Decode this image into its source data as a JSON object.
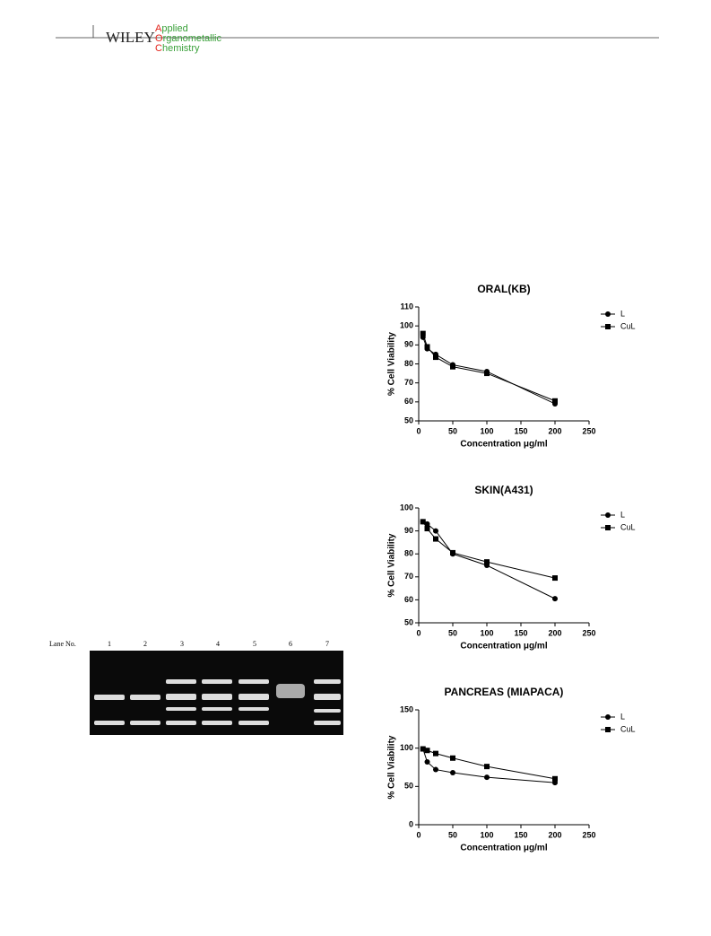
{
  "header": {
    "publisher": "WILEY",
    "journal": [
      "Applied",
      "Organometallic",
      "Chemistry"
    ]
  },
  "gel": {
    "lane_title": "Lane No.",
    "lanes": [
      "1",
      "2",
      "3",
      "4",
      "5",
      "6",
      "7"
    ]
  },
  "chart_data": [
    {
      "type": "line",
      "title": "ORAL(KB)",
      "x_label": "Concentration μg/ml",
      "y_label": "% Cell Viability",
      "x": [
        6.25,
        12.5,
        25,
        50,
        100,
        200
      ],
      "series": [
        {
          "name": "L",
          "color": "#000000",
          "marker": "circle",
          "values": [
            94,
            88,
            85,
            79.5,
            76,
            59
          ]
        },
        {
          "name": "CuL",
          "color": "#000000",
          "marker": "square",
          "values": [
            96,
            89,
            83.5,
            78.5,
            75,
            60.5
          ]
        }
      ],
      "xlim": [
        0,
        250
      ],
      "xticks": [
        0,
        50,
        100,
        150,
        200,
        250
      ],
      "ylim": [
        50,
        110
      ],
      "yticks": [
        50,
        60,
        70,
        80,
        90,
        100,
        110
      ],
      "legend": "right"
    },
    {
      "type": "line",
      "title": "SKIN(A431)",
      "x_label": "Concentration μg/ml",
      "y_label": "% Cell Viability",
      "x": [
        6.25,
        12.5,
        25,
        50,
        100,
        200
      ],
      "series": [
        {
          "name": "L",
          "color": "#000000",
          "marker": "circle",
          "values": [
            94,
            93,
            90,
            80,
            75,
            60.5
          ]
        },
        {
          "name": "CuL",
          "color": "#000000",
          "marker": "square",
          "values": [
            94,
            91,
            86.5,
            80.5,
            76.5,
            69.5
          ]
        }
      ],
      "xlim": [
        0,
        250
      ],
      "xticks": [
        0,
        50,
        100,
        150,
        200,
        250
      ],
      "ylim": [
        50,
        100
      ],
      "yticks": [
        50,
        60,
        70,
        80,
        90,
        100
      ],
      "legend": "right"
    },
    {
      "type": "line",
      "title": "PANCREAS (MIAPACA)",
      "x_label": "Concentration μg/ml",
      "y_label": "% Cell Viability",
      "x": [
        6.25,
        12.5,
        25,
        50,
        100,
        200
      ],
      "series": [
        {
          "name": "L",
          "color": "#000000",
          "marker": "circle",
          "values": [
            99,
            82,
            72,
            68,
            62,
            55
          ]
        },
        {
          "name": "CuL",
          "color": "#000000",
          "marker": "square",
          "values": [
            99,
            97,
            93,
            87,
            76,
            60
          ]
        }
      ],
      "xlim": [
        0,
        250
      ],
      "xticks": [
        0,
        50,
        100,
        150,
        200,
        250
      ],
      "ylim": [
        0,
        150
      ],
      "yticks": [
        0,
        50,
        100,
        150
      ],
      "legend": "right"
    }
  ]
}
